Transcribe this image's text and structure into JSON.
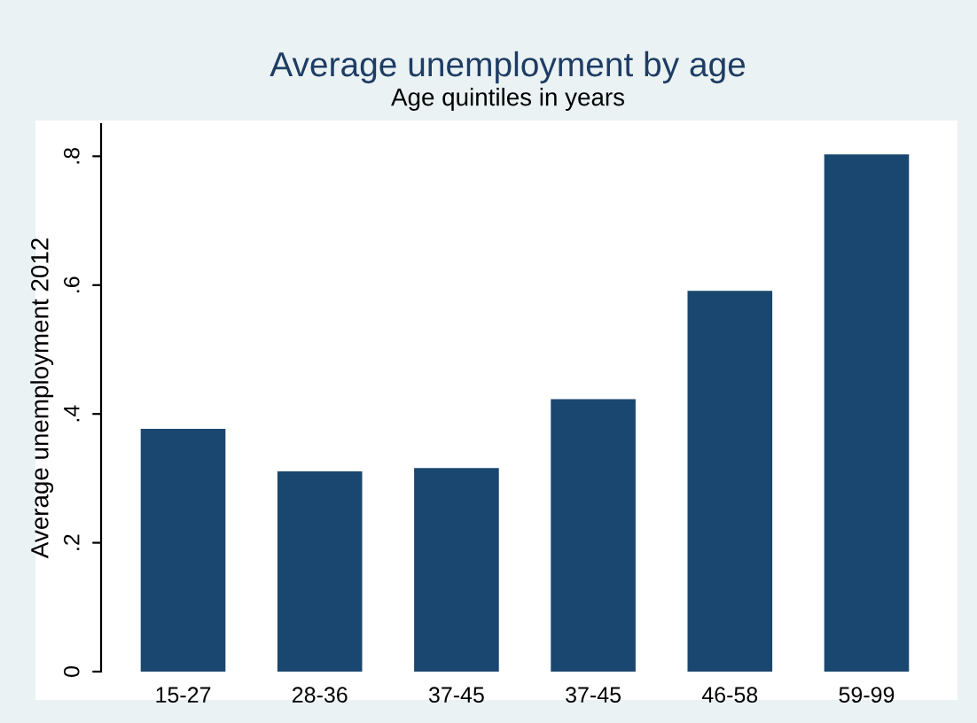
{
  "chart_data": {
    "type": "bar",
    "title": "Average unemployment by age",
    "subtitle": "Age quintiles in years",
    "ylabel": "Average unemployment 2012",
    "categories": [
      "15-27",
      "28-36",
      "37-45",
      "37-45",
      "46-58",
      "59-99"
    ],
    "values": [
      0.377,
      0.311,
      0.316,
      0.423,
      0.591,
      0.803
    ],
    "color": "#1a476f",
    "ylim": [
      0,
      0.85
    ],
    "yticks": [
      0,
      {
        "value": 0.2,
        "label": ".2"
      },
      {
        "value": 0.4,
        "label": ".4"
      },
      {
        "value": 0.6,
        "label": ".6"
      },
      {
        "value": 0.8,
        "label": ".8"
      }
    ]
  }
}
